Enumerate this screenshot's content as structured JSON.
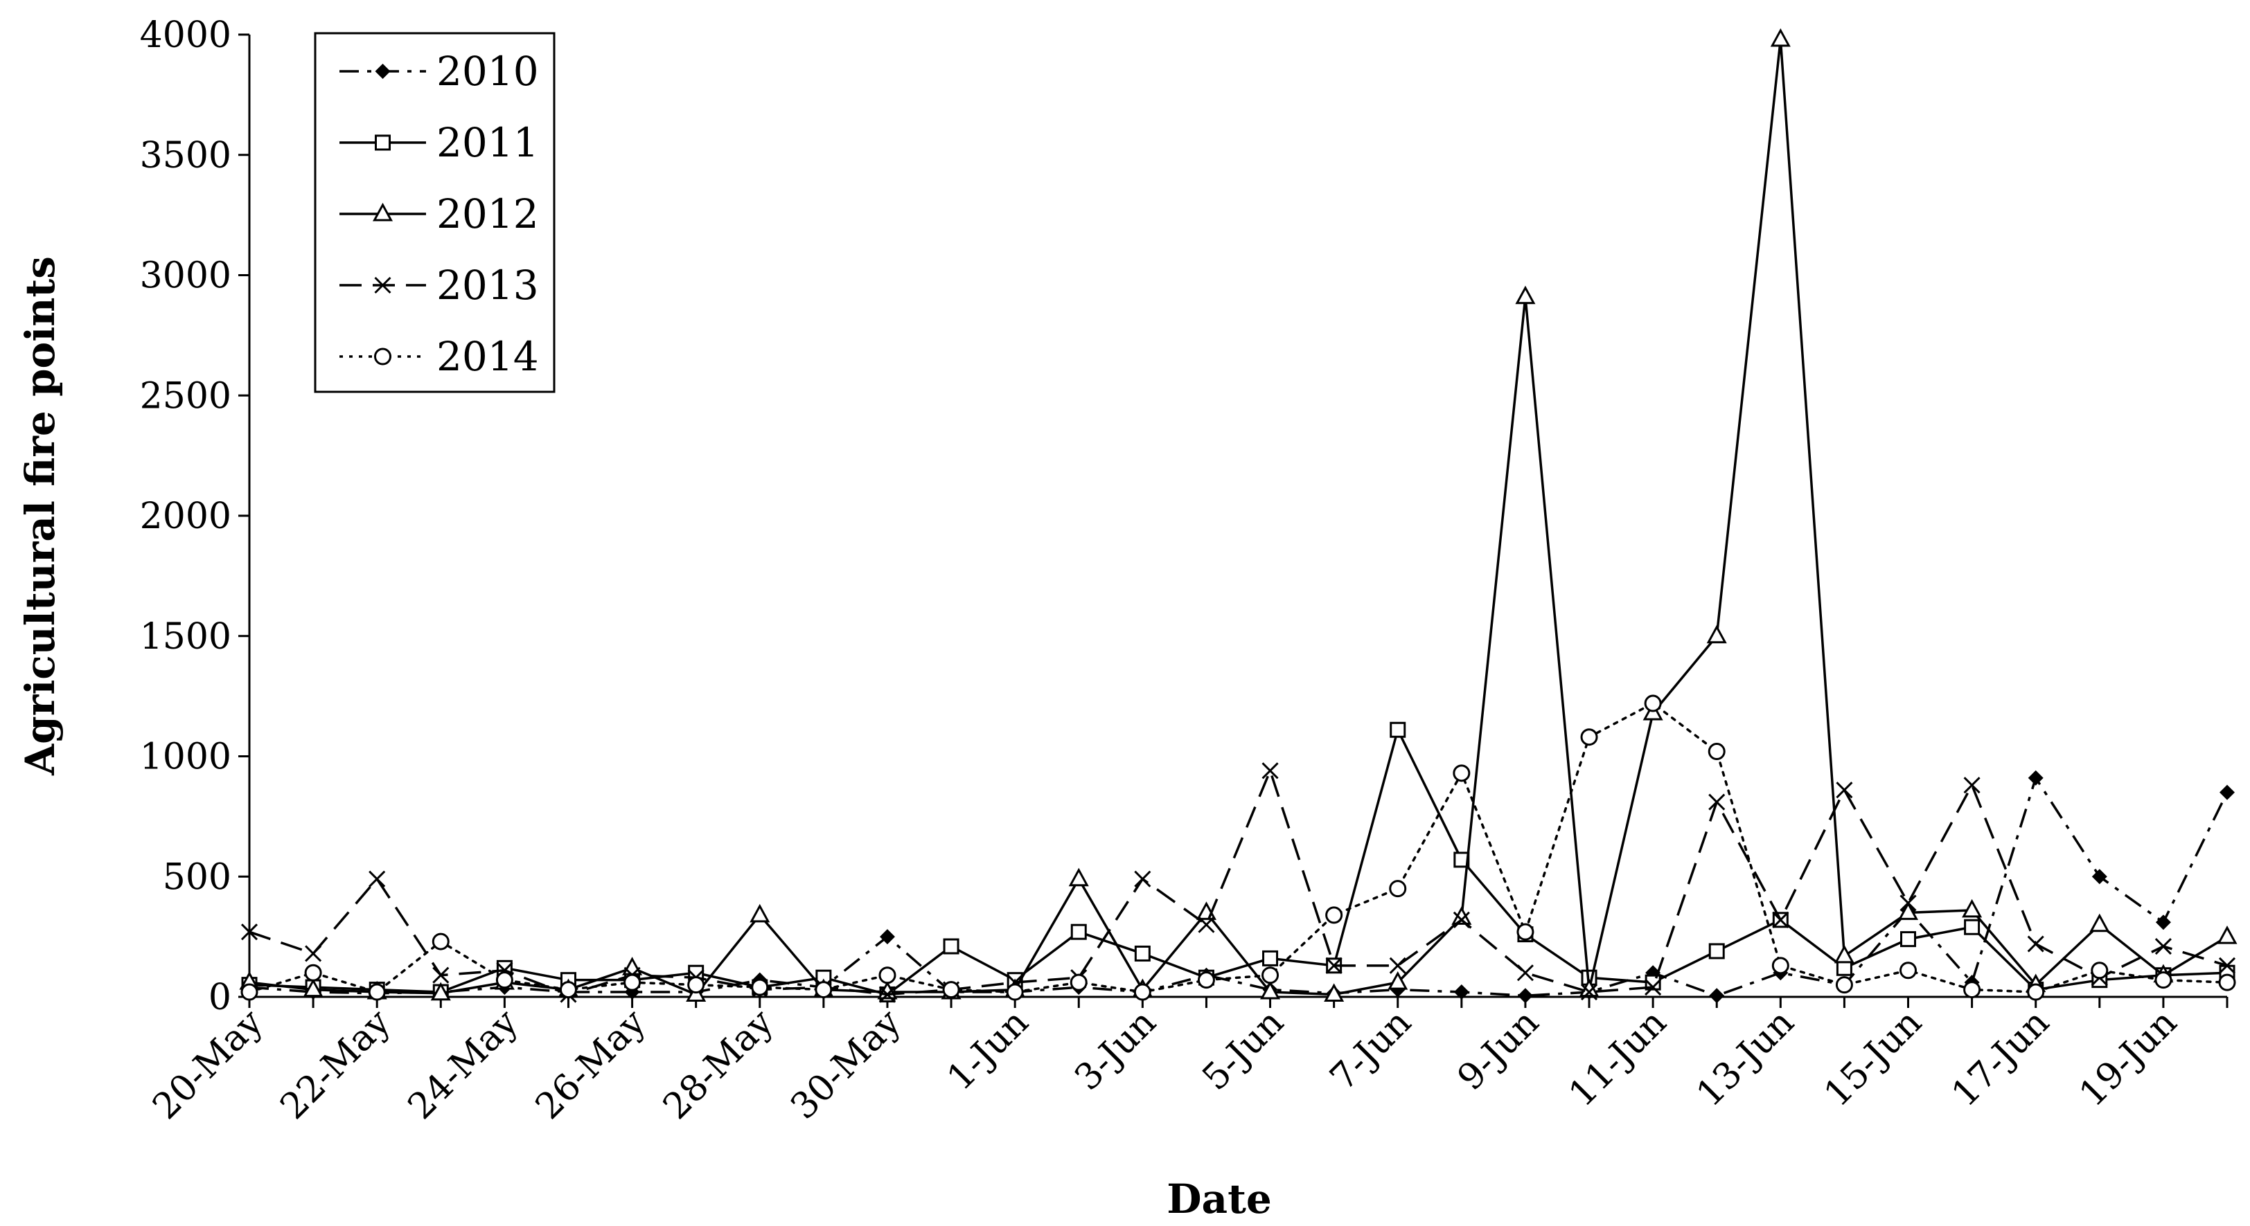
{
  "chart_data": {
    "type": "line",
    "title": "",
    "xlabel": "Date",
    "ylabel": "Agricultural fire points",
    "ylim": [
      0,
      4000
    ],
    "yticks": [
      0,
      500,
      1000,
      1500,
      2000,
      2500,
      3000,
      3500,
      4000
    ],
    "grid": false,
    "legend_position": "top-left",
    "x": [
      "20-May",
      "21-May",
      "22-May",
      "23-May",
      "24-May",
      "25-May",
      "26-May",
      "27-May",
      "28-May",
      "29-May",
      "30-May",
      "31-May",
      "1-Jun",
      "2-Jun",
      "3-Jun",
      "4-Jun",
      "5-Jun",
      "6-Jun",
      "7-Jun",
      "8-Jun",
      "9-Jun",
      "10-Jun",
      "11-Jun",
      "12-Jun",
      "13-Jun",
      "14-Jun",
      "15-Jun",
      "16-Jun",
      "17-Jun",
      "18-Jun",
      "19-Jun",
      "20-Jun"
    ],
    "xticks": [
      "20-May",
      "22-May",
      "24-May",
      "26-May",
      "28-May",
      "30-May",
      "1-Jun",
      "3-Jun",
      "5-Jun",
      "7-Jun",
      "9-Jun",
      "11-Jun",
      "13-Jun",
      "15-Jun",
      "17-Jun",
      "19-Jun"
    ],
    "series": [
      {
        "name": "2010",
        "marker": "diamond",
        "dash": "dashdot",
        "color": "#000000",
        "values": [
          40,
          20,
          15,
          20,
          40,
          20,
          20,
          20,
          70,
          40,
          250,
          20,
          20,
          40,
          20,
          90,
          30,
          15,
          30,
          20,
          5,
          20,
          100,
          5,
          100,
          50,
          360,
          60,
          910,
          500,
          310,
          850
        ]
      },
      {
        "name": "2011",
        "marker": "square",
        "dash": "solid",
        "color": "#000000",
        "values": [
          50,
          40,
          30,
          20,
          120,
          70,
          70,
          100,
          40,
          80,
          10,
          210,
          70,
          270,
          180,
          80,
          160,
          130,
          1110,
          570,
          260,
          80,
          60,
          190,
          320,
          120,
          240,
          290,
          30,
          70,
          90,
          100
        ]
      },
      {
        "name": "2012",
        "marker": "triangle",
        "dash": "solid",
        "color": "#000000",
        "values": [
          60,
          30,
          20,
          15,
          60,
          30,
          120,
          10,
          340,
          30,
          20,
          20,
          30,
          490,
          30,
          350,
          20,
          10,
          60,
          330,
          2910,
          30,
          1180,
          1500,
          3980,
          170,
          350,
          360,
          50,
          300,
          90,
          250
        ]
      },
      {
        "name": "2013",
        "marker": "cross",
        "dash": "dash",
        "color": "#000000",
        "values": [
          270,
          180,
          490,
          90,
          110,
          10,
          90,
          80,
          30,
          40,
          10,
          30,
          60,
          80,
          490,
          300,
          940,
          130,
          130,
          320,
          100,
          20,
          40,
          810,
          320,
          860,
          390,
          880,
          220,
          80,
          210,
          130
        ]
      },
      {
        "name": "2014",
        "marker": "circle",
        "dash": "dot",
        "color": "#000000",
        "values": [
          20,
          100,
          20,
          230,
          70,
          30,
          60,
          50,
          40,
          30,
          90,
          30,
          20,
          60,
          20,
          70,
          90,
          340,
          450,
          930,
          270,
          1080,
          1220,
          1020,
          130,
          50,
          110,
          30,
          20,
          110,
          70,
          60
        ]
      }
    ]
  }
}
